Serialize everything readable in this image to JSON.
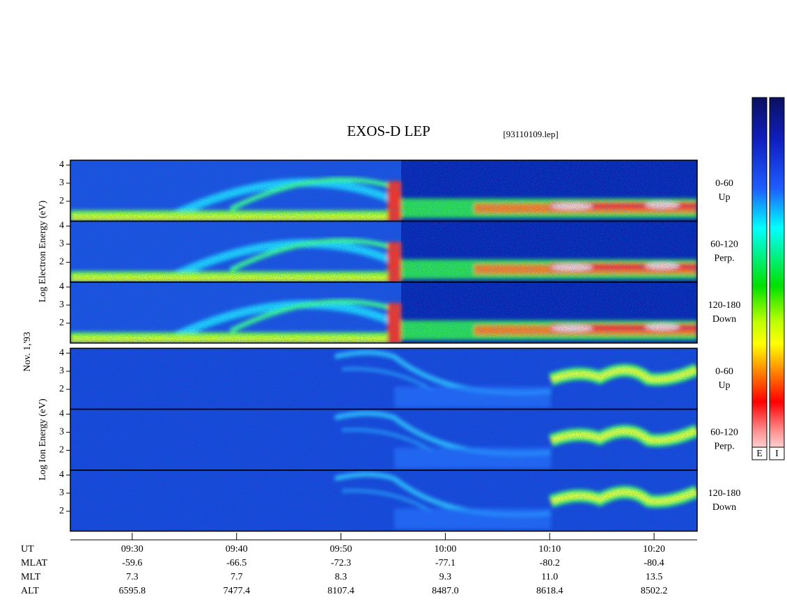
{
  "chart_data": {
    "type": "spectrogram",
    "title": "EXOS-D LEP",
    "file": "[93110109.lep]",
    "date": "Nov. 1,'93",
    "group_labels": [
      "Log Electron Energy (eV)",
      "Log Ion Energy (eV)"
    ],
    "xlim": [
      564.07,
      624.13
    ],
    "xticks": [
      {
        "value": 570,
        "label": "09:30"
      },
      {
        "value": 580,
        "label": "09:40"
      },
      {
        "value": 590,
        "label": "09:50"
      },
      {
        "value": 600,
        "label": "10:00"
      },
      {
        "value": 610,
        "label": "10:10"
      },
      {
        "value": 620,
        "label": "10:20"
      }
    ],
    "x_label": "UT",
    "panels": [
      {
        "ylim": [
          0.9,
          4.27
        ],
        "yticks": [
          2,
          3,
          4
        ],
        "labels": [
          "0-60",
          "Up"
        ]
      },
      {
        "ylim": [
          0.9,
          4.27
        ],
        "yticks": [
          2,
          3,
          4
        ],
        "labels": [
          "60-120",
          "Perp."
        ]
      },
      {
        "ylim": [
          0.9,
          4.27
        ],
        "yticks": [
          2,
          3,
          4
        ],
        "labels": [
          "120-180",
          "Down"
        ]
      },
      {
        "ylim": [
          0.9,
          4.27
        ],
        "yticks": [
          2,
          3,
          4
        ],
        "labels": [
          "0-60",
          "Up"
        ]
      },
      {
        "ylim": [
          0.9,
          4.27
        ],
        "yticks": [
          2,
          3,
          4
        ],
        "labels": [
          "60-120",
          "Perp."
        ]
      },
      {
        "ylim": [
          0.9,
          4.27
        ],
        "yticks": [
          2,
          3,
          4
        ],
        "labels": [
          "120-180",
          "Down"
        ]
      }
    ],
    "colorbar_labels": [
      "E",
      "I"
    ]
  },
  "ephemeris": [
    {
      "label": "MLAT",
      "values": [
        "-59.6",
        "-66.5",
        "-72.3",
        "-77.1",
        "-80.2",
        "-80.4"
      ]
    },
    {
      "label": "MLT",
      "values": [
        "7.3",
        "7.7",
        "8.3",
        "9.3",
        "11.0",
        "13.5"
      ]
    },
    {
      "label": "ALT",
      "values": [
        "6595.8",
        "7477.4",
        "8107.4",
        "8487.0",
        "8618.4",
        "8502.2"
      ]
    }
  ]
}
